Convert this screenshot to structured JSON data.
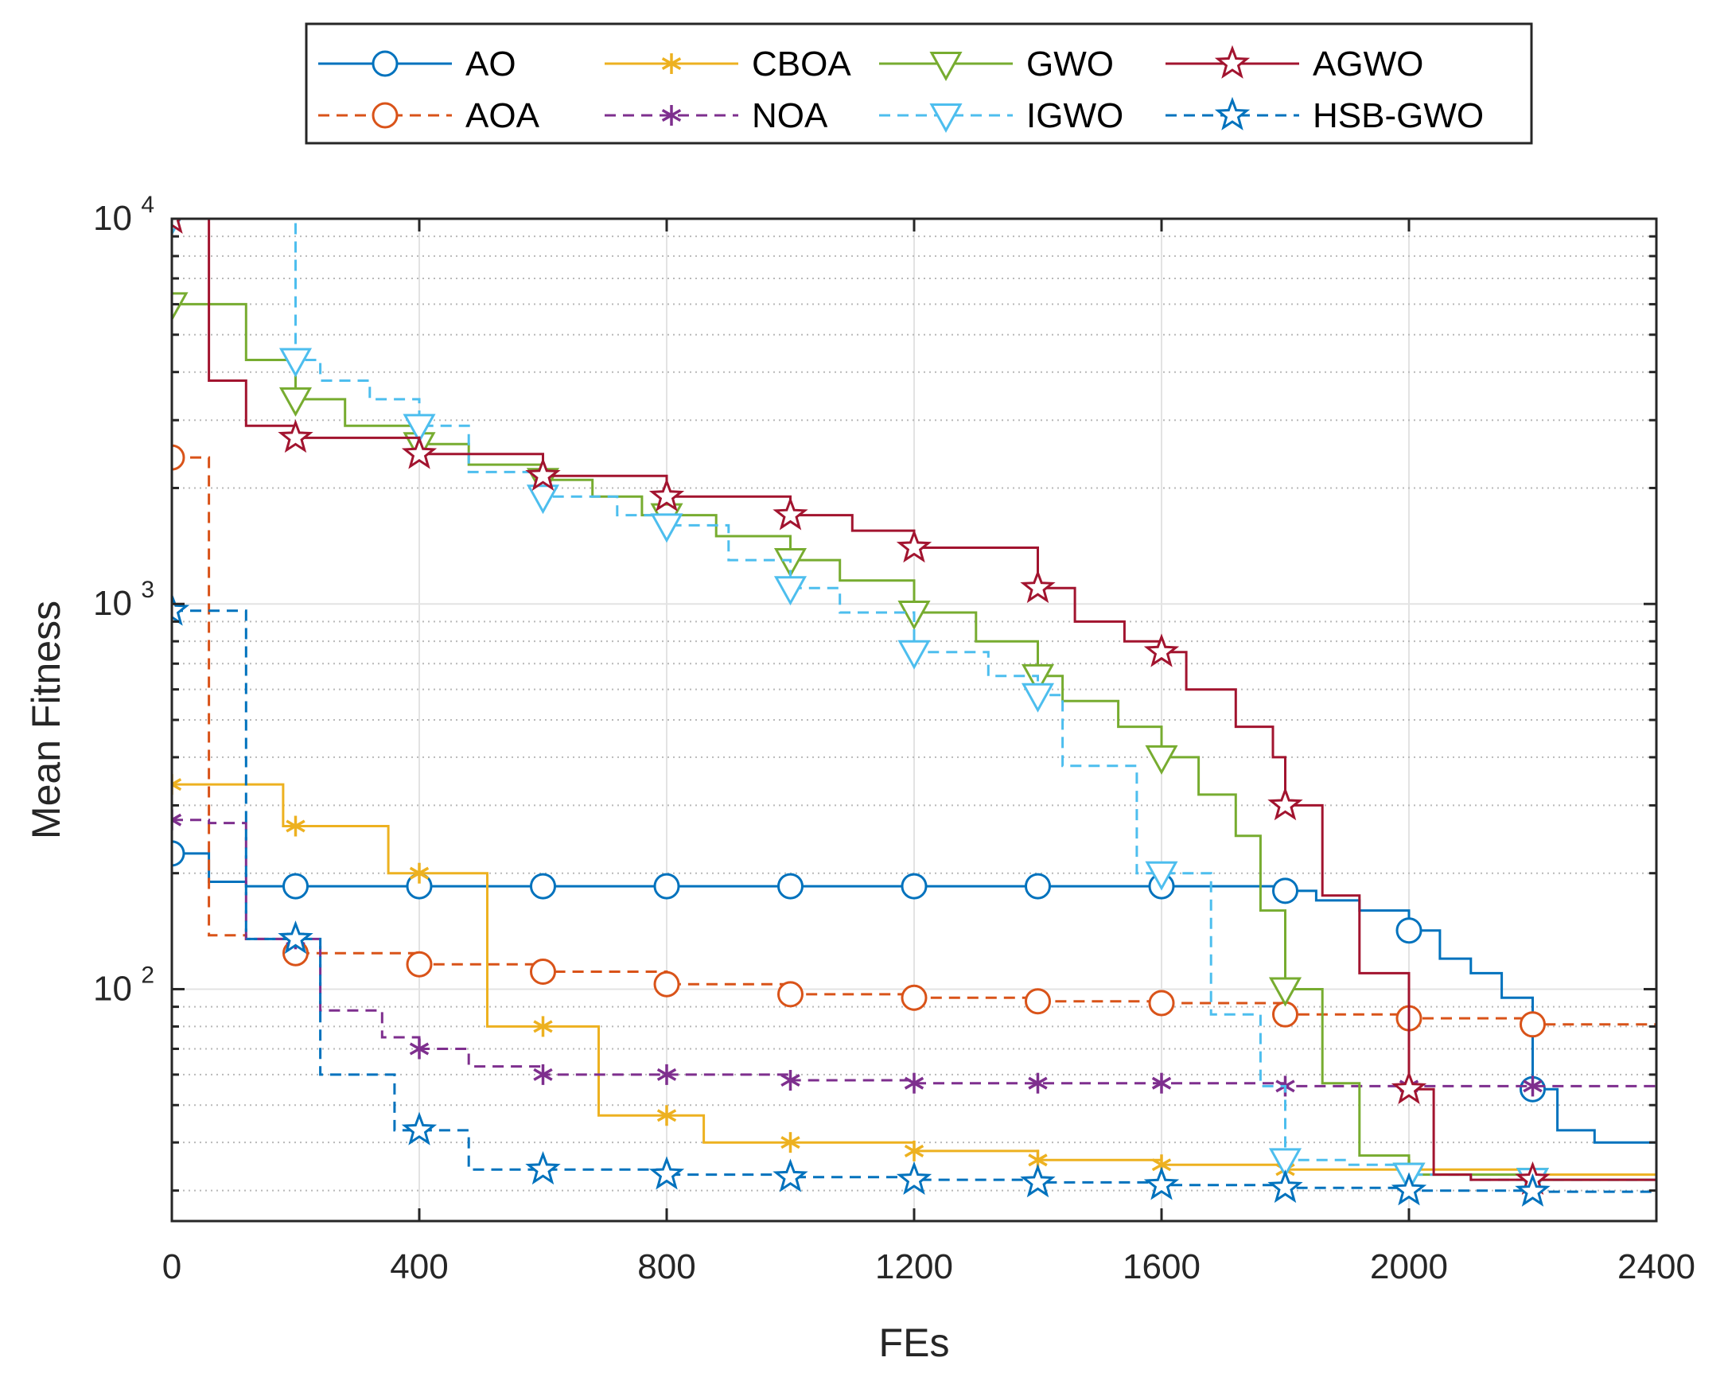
{
  "chart_data": {
    "type": "line",
    "title": "",
    "xlabel": "FEs",
    "ylabel": "Mean Fitness",
    "xlim": [
      0,
      2400
    ],
    "ylim": [
      25,
      10000
    ],
    "yscale": "log",
    "grid": true,
    "legend_placement": "top (outside, 4 columns x 2 rows)",
    "x_ticks": [
      0,
      400,
      800,
      1200,
      1600,
      2000,
      2400
    ],
    "x_tick_labels": [
      "0",
      "400",
      "800",
      "1200",
      "1600",
      "2000",
      "2400"
    ],
    "y_ticks": [
      100,
      1000,
      10000
    ],
    "y_tick_labels": [
      {
        "base": "10",
        "exp": "2"
      },
      {
        "base": "10",
        "exp": "3"
      },
      {
        "base": "10",
        "exp": "4"
      }
    ],
    "series": [
      {
        "name": "AO",
        "color": "#0072BD",
        "dash": "solid",
        "marker": "circle",
        "x": [
          0,
          60,
          120,
          200,
          400,
          600,
          800,
          1000,
          1200,
          1400,
          1600,
          1800,
          1850,
          1920,
          2000,
          2050,
          2100,
          2150,
          2200,
          2240,
          2300,
          2400
        ],
        "y": [
          225,
          190,
          185,
          185,
          185,
          185,
          185,
          185,
          185,
          185,
          185,
          180,
          170,
          160,
          142,
          120,
          110,
          95,
          55,
          43,
          40,
          39
        ]
      },
      {
        "name": "AOA",
        "color": "#D95319",
        "dash": "dashed",
        "marker": "circle",
        "x": [
          0,
          60,
          120,
          200,
          400,
          600,
          800,
          1000,
          1200,
          1400,
          1600,
          1800,
          2000,
          2200,
          2400
        ],
        "y": [
          2400,
          138,
          135,
          124,
          116,
          111,
          103,
          97,
          95,
          93,
          92,
          86,
          84,
          81,
          79
        ]
      },
      {
        "name": "CBOA",
        "color": "#EDB120",
        "dash": "solid",
        "marker": "asterisk",
        "x": [
          0,
          120,
          180,
          350,
          420,
          510,
          600,
          690,
          800,
          860,
          1000,
          1200,
          1400,
          1600,
          1800,
          2000,
          2200,
          2400
        ],
        "y": [
          340,
          340,
          265,
          200,
          200,
          80,
          80,
          47,
          47,
          40,
          40,
          38,
          36,
          35,
          34,
          34,
          33,
          33
        ]
      },
      {
        "name": "NOA",
        "color": "#7E2F8E",
        "dash": "dashed",
        "marker": "asterisk",
        "x": [
          0,
          60,
          120,
          240,
          340,
          400,
          480,
          600,
          800,
          1000,
          1200,
          1400,
          1600,
          1800,
          2000,
          2200,
          2400
        ],
        "y": [
          275,
          270,
          135,
          88,
          75,
          70,
          63,
          60,
          60,
          58,
          57,
          57,
          57,
          56,
          56,
          56,
          56
        ]
      },
      {
        "name": "GWO",
        "color": "#77AC30",
        "dash": "solid",
        "marker": "triangle-down",
        "x": [
          0,
          60,
          120,
          200,
          280,
          400,
          480,
          600,
          680,
          760,
          880,
          1000,
          1080,
          1200,
          1300,
          1400,
          1440,
          1530,
          1600,
          1660,
          1720,
          1760,
          1800,
          1860,
          1920,
          2000,
          2200,
          2400
        ],
        "y": [
          6000,
          6000,
          4300,
          3400,
          2900,
          2600,
          2300,
          2100,
          1900,
          1700,
          1500,
          1300,
          1150,
          950,
          800,
          650,
          560,
          480,
          400,
          320,
          250,
          160,
          100,
          57,
          37,
          33,
          32,
          32
        ]
      },
      {
        "name": "IGWO",
        "color": "#4DBEEE",
        "dash": "dashed",
        "marker": "triangle-down",
        "x": [
          0,
          120,
          200,
          240,
          320,
          400,
          480,
          600,
          720,
          800,
          900,
          1000,
          1080,
          1200,
          1320,
          1400,
          1440,
          1560,
          1600,
          1680,
          1760,
          1800,
          1900,
          2000,
          2100,
          2200,
          2400
        ],
        "y": [
          10000,
          10000,
          4300,
          3800,
          3400,
          2900,
          2200,
          1900,
          1700,
          1600,
          1300,
          1100,
          950,
          750,
          650,
          580,
          380,
          200,
          200,
          86,
          56,
          36,
          35,
          33,
          32,
          32,
          32
        ]
      },
      {
        "name": "AGWO",
        "color": "#A2142F",
        "dash": "solid",
        "marker": "pentagram",
        "x": [
          0,
          60,
          120,
          200,
          400,
          600,
          800,
          1000,
          1100,
          1200,
          1400,
          1460,
          1540,
          1600,
          1640,
          1720,
          1780,
          1800,
          1860,
          1920,
          2000,
          2040,
          2100,
          2200,
          2400
        ],
        "y": [
          10000,
          3800,
          2900,
          2700,
          2450,
          2150,
          1900,
          1700,
          1550,
          1400,
          1100,
          900,
          800,
          750,
          600,
          480,
          400,
          300,
          175,
          110,
          55,
          33,
          32,
          32,
          32
        ]
      },
      {
        "name": "HSB-GWO",
        "color": "#0072BD",
        "dash": "dashed",
        "marker": "pentagram",
        "x": [
          0,
          60,
          120,
          200,
          240,
          320,
          360,
          400,
          480,
          600,
          800,
          1000,
          1200,
          1400,
          1600,
          1800,
          2000,
          2200,
          2400
        ],
        "y": [
          960,
          960,
          135,
          135,
          60,
          60,
          43,
          43,
          34,
          34,
          33,
          32.5,
          32,
          31.5,
          31,
          30.5,
          30,
          29.8,
          29.5
        ]
      }
    ]
  }
}
